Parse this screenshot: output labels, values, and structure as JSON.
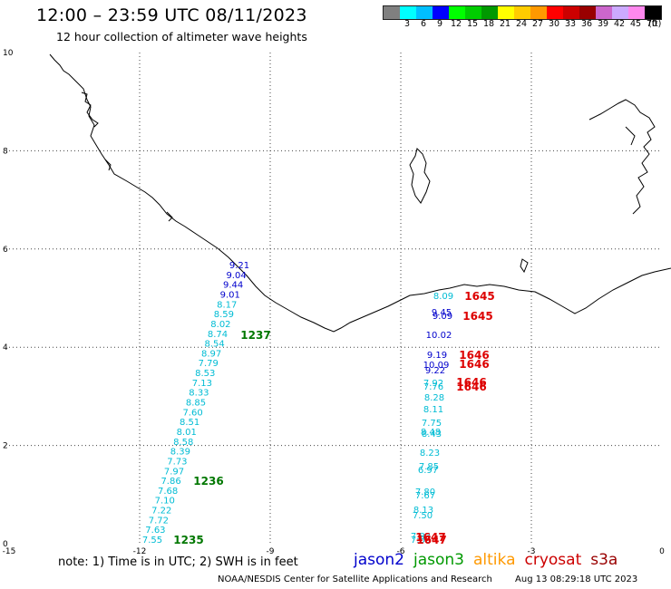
{
  "header": {
    "title": "12:00 – 23:59 UTC 08/11/2023",
    "subtitle": "12 hour collection of altimeter wave heights"
  },
  "legend": {
    "unit": "(ft)",
    "colors": [
      "#808080",
      "#00ffff",
      "#00bfff",
      "#0000ff",
      "#00ff00",
      "#00cc00",
      "#009900",
      "#ffff00",
      "#ffcc00",
      "#ff9900",
      "#ff0000",
      "#cc0000",
      "#990000",
      "#cc66cc",
      "#ccaaff",
      "#ff88ee",
      "#000000"
    ],
    "labels": [
      "3",
      "6",
      "9",
      "12",
      "15",
      "18",
      "21",
      "24",
      "27",
      "30",
      "33",
      "36",
      "39",
      "42",
      "45",
      "70"
    ]
  },
  "axes": {
    "x_ticks": [
      "-15",
      "-12",
      "-9",
      "-6",
      "-3",
      "0"
    ],
    "y_ticks": [
      "0",
      "2",
      "4",
      "6",
      "8",
      "10"
    ]
  },
  "tracks": {
    "cyan": "#00bcd4",
    "blue": "#0000cc",
    "green": "#007700",
    "red": "#dd0000",
    "west_swh": [
      {
        "v": "9.21",
        "c": "blue"
      },
      {
        "v": "9.04",
        "c": "blue"
      },
      {
        "v": "9.44",
        "c": "blue"
      },
      {
        "v": "9.01",
        "c": "blue"
      },
      {
        "v": "8.17",
        "c": "cyan"
      },
      {
        "v": "8.59",
        "c": "cyan"
      },
      {
        "v": "8.02",
        "c": "cyan"
      },
      {
        "v": "8.74",
        "c": "cyan"
      },
      {
        "v": "8.54",
        "c": "cyan"
      },
      {
        "v": "8.97",
        "c": "cyan"
      },
      {
        "v": "7.79",
        "c": "cyan"
      },
      {
        "v": "8.53",
        "c": "cyan"
      },
      {
        "v": "7.13",
        "c": "cyan"
      },
      {
        "v": "8.33",
        "c": "cyan"
      },
      {
        "v": "8.85",
        "c": "cyan"
      },
      {
        "v": "7.60",
        "c": "cyan"
      },
      {
        "v": "8.51",
        "c": "cyan"
      },
      {
        "v": "8.01",
        "c": "cyan"
      },
      {
        "v": "8.58",
        "c": "cyan"
      },
      {
        "v": "8.39",
        "c": "cyan"
      },
      {
        "v": "7.73",
        "c": "cyan"
      },
      {
        "v": "7.97",
        "c": "cyan"
      },
      {
        "v": "7.86",
        "c": "cyan"
      },
      {
        "v": "7.68",
        "c": "cyan"
      },
      {
        "v": "7.10",
        "c": "cyan"
      },
      {
        "v": "7.22",
        "c": "cyan"
      },
      {
        "v": "7.72",
        "c": "cyan"
      },
      {
        "v": "7.63",
        "c": "cyan"
      },
      {
        "v": "7.55",
        "c": "cyan"
      }
    ],
    "west_times": [
      "1237",
      "1236",
      "1235"
    ],
    "east_swh": [
      {
        "v": "8.09",
        "c": "cyan"
      },
      {
        "v": "9.45",
        "c": "blue"
      },
      {
        "v": "9.09",
        "c": "blue"
      },
      {
        "v": "10.02",
        "c": "blue"
      },
      {
        "v": "9.19",
        "c": "blue"
      },
      {
        "v": "10.09",
        "c": "blue"
      },
      {
        "v": "9.22",
        "c": "blue"
      },
      {
        "v": "7.92",
        "c": "cyan"
      },
      {
        "v": "7.76",
        "c": "cyan"
      },
      {
        "v": "8.28",
        "c": "cyan"
      },
      {
        "v": "8.11",
        "c": "cyan"
      },
      {
        "v": "7.75",
        "c": "cyan"
      },
      {
        "v": "8.48",
        "c": "cyan"
      },
      {
        "v": "8.43",
        "c": "cyan"
      },
      {
        "v": "8.23",
        "c": "cyan"
      },
      {
        "v": "7.85",
        "c": "cyan"
      },
      {
        "v": "6.97",
        "c": "cyan"
      },
      {
        "v": "7.80",
        "c": "cyan"
      },
      {
        "v": "7.67",
        "c": "cyan"
      },
      {
        "v": "8.13",
        "c": "cyan"
      },
      {
        "v": "7.50",
        "c": "cyan"
      },
      {
        "v": "7.83",
        "c": "cyan"
      },
      {
        "v": "7.63",
        "c": "cyan"
      }
    ],
    "east_times": [
      "1645",
      "1645",
      "1646",
      "1646",
      "1646",
      "1646",
      "1647",
      "1647"
    ]
  },
  "footer": {
    "note": "note:  1) Time is in UTC;  2) SWH is in feet",
    "satellites": [
      {
        "name": "jason2",
        "color": "#0000cc"
      },
      {
        "name": "jason3",
        "color": "#009900"
      },
      {
        "name": "altika",
        "color": "#ff9900"
      },
      {
        "name": "cryosat",
        "color": "#cc0000"
      },
      {
        "name": "s3a",
        "color": "#990000"
      }
    ],
    "credit": "NOAA/NESDIS Center for Satellite Applications and Research",
    "stamp": "Aug 13 08:29:18 UTC 2023"
  }
}
